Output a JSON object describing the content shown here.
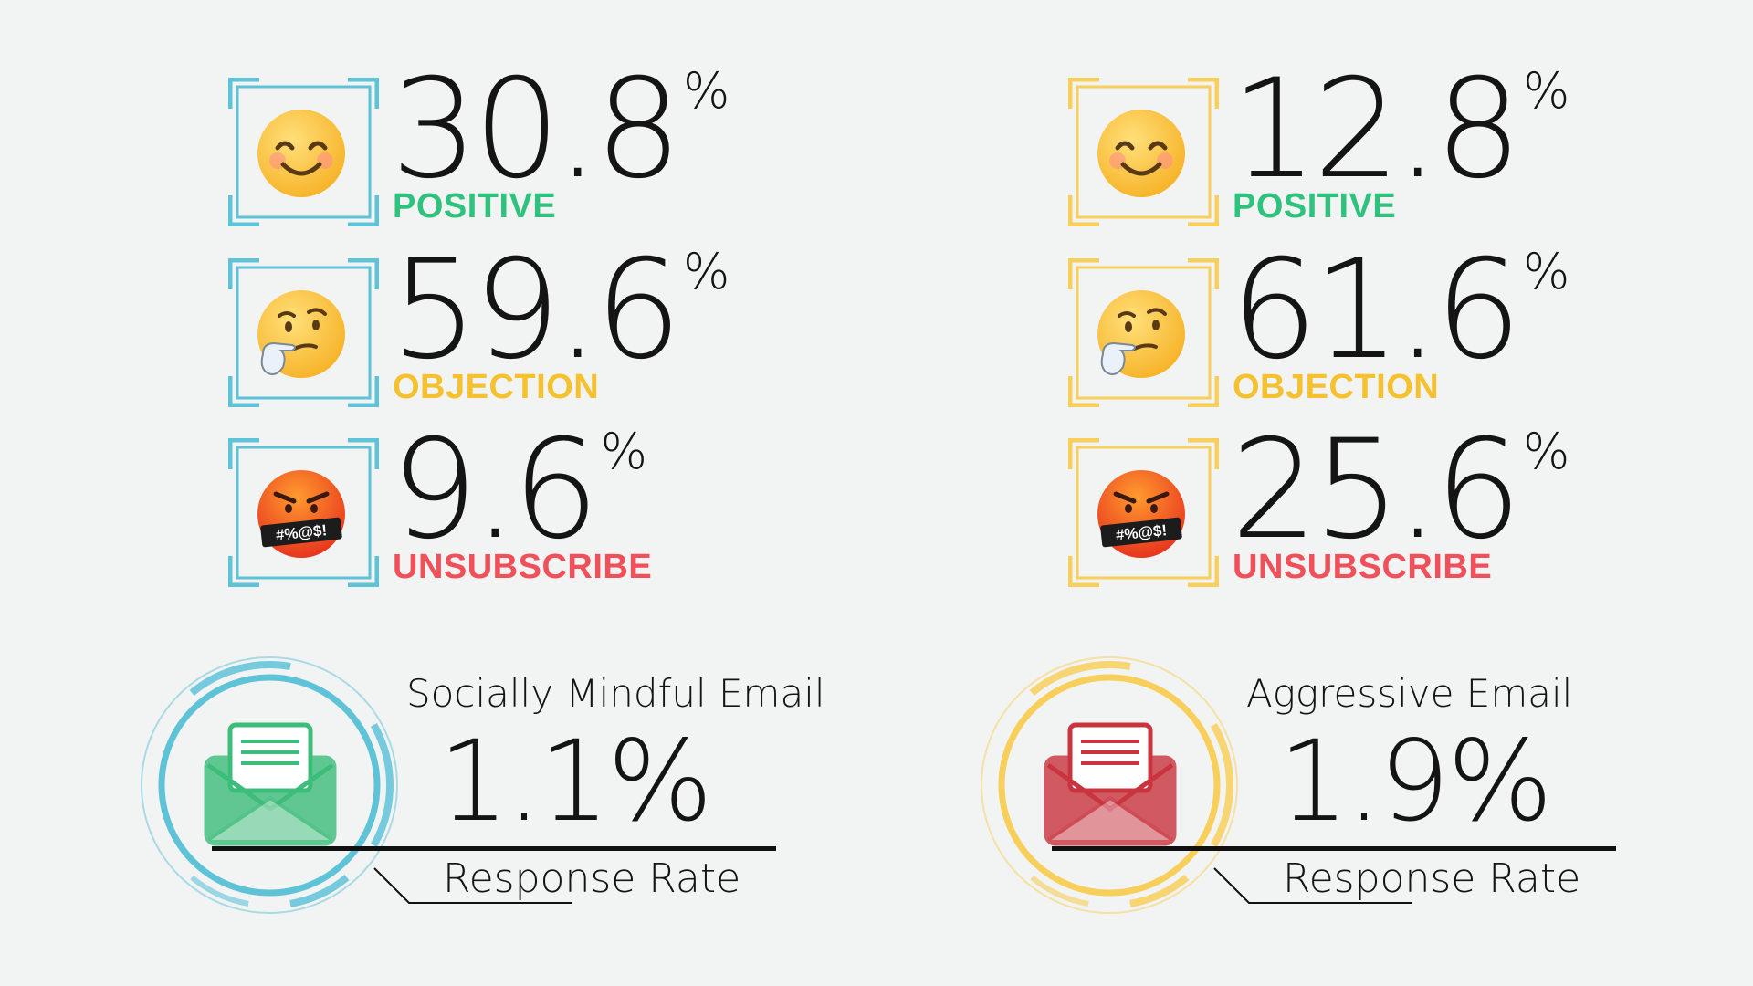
{
  "chart_data": [
    {
      "type": "table",
      "title": "Socially Mindful Email",
      "accent": "#5fc3d8",
      "categories": [
        "POSITIVE",
        "OBJECTION",
        "UNSUBSCRIBE"
      ],
      "values": [
        "30.8",
        "59.6",
        "9.6"
      ],
      "unit": "%",
      "response_rate": "1.1%",
      "response_label": "Response Rate",
      "envelope_color": "#3dbd7a"
    },
    {
      "type": "table",
      "title": "Aggressive Email",
      "accent": "#f7cf5a",
      "categories": [
        "POSITIVE",
        "OBJECTION",
        "UNSUBSCRIBE"
      ],
      "values": [
        "12.8",
        "61.6",
        "25.6"
      ],
      "unit": "%",
      "response_rate": "1.9%",
      "response_label": "Response Rate",
      "envelope_color": "#c9353f"
    }
  ],
  "label_colors": {
    "POSITIVE": "#2ec27e",
    "OBJECTION": "#f5c12e",
    "UNSUBSCRIBE": "#f0505a"
  },
  "emoji_icons": [
    "smiling-face-icon",
    "thinking-face-icon",
    "cursing-face-icon"
  ]
}
